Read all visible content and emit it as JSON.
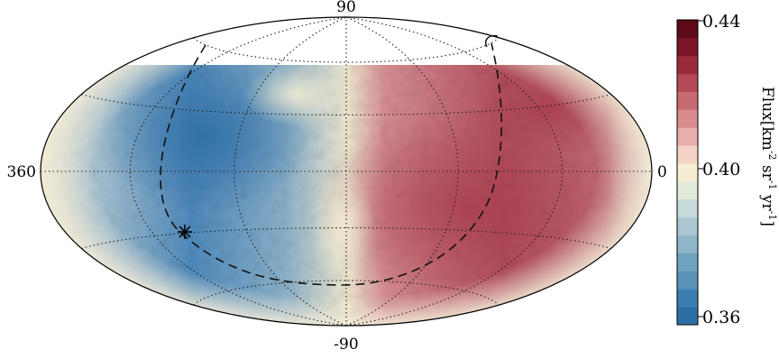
{
  "chart_data": {
    "type": "heatmap",
    "projection": "hammer-aitoff (all-sky)",
    "grid": true,
    "x_tick_labels": {
      "left": "360",
      "right": "0"
    },
    "y_tick_labels": {
      "top": "90",
      "bottom": "-90"
    },
    "colorbar": {
      "label_main": "Flux[km",
      "label_sup1": "-2",
      "label_mid1": " sr",
      "label_sup2": "-1",
      "label_mid2": " yr",
      "label_sup3": "-1",
      "label_end": "]",
      "min": 0.36,
      "max": 0.44,
      "mid": 0.4,
      "tick_labels": [
        "0.44",
        "0.40",
        "0.36"
      ],
      "levels": 16,
      "colors": [
        "#2e6fa3",
        "#3d7eb0",
        "#5a93ba",
        "#6ea4bf",
        "#8fb5c8",
        "#a9c6d1",
        "#c8d9d9",
        "#e2ead9",
        "#f5eed2",
        "#f3d3c4",
        "#e7aeab",
        "#d98b8e",
        "#c86a72",
        "#b44a56",
        "#9a2a3c",
        "#7c1528",
        "#5c0a18"
      ],
      "placement": "right"
    },
    "regions": [
      {
        "name": "low-flux region",
        "approx_value": 0.37,
        "color": "#3a7ab0"
      },
      {
        "name": "high-flux region",
        "approx_value": 0.425,
        "color": "#b8505e"
      }
    ],
    "annotations": {
      "dashed_curve": "dashed contour",
      "star_marker": "asterisk marker"
    },
    "masked_region": "white cap near +90 (no data)"
  }
}
